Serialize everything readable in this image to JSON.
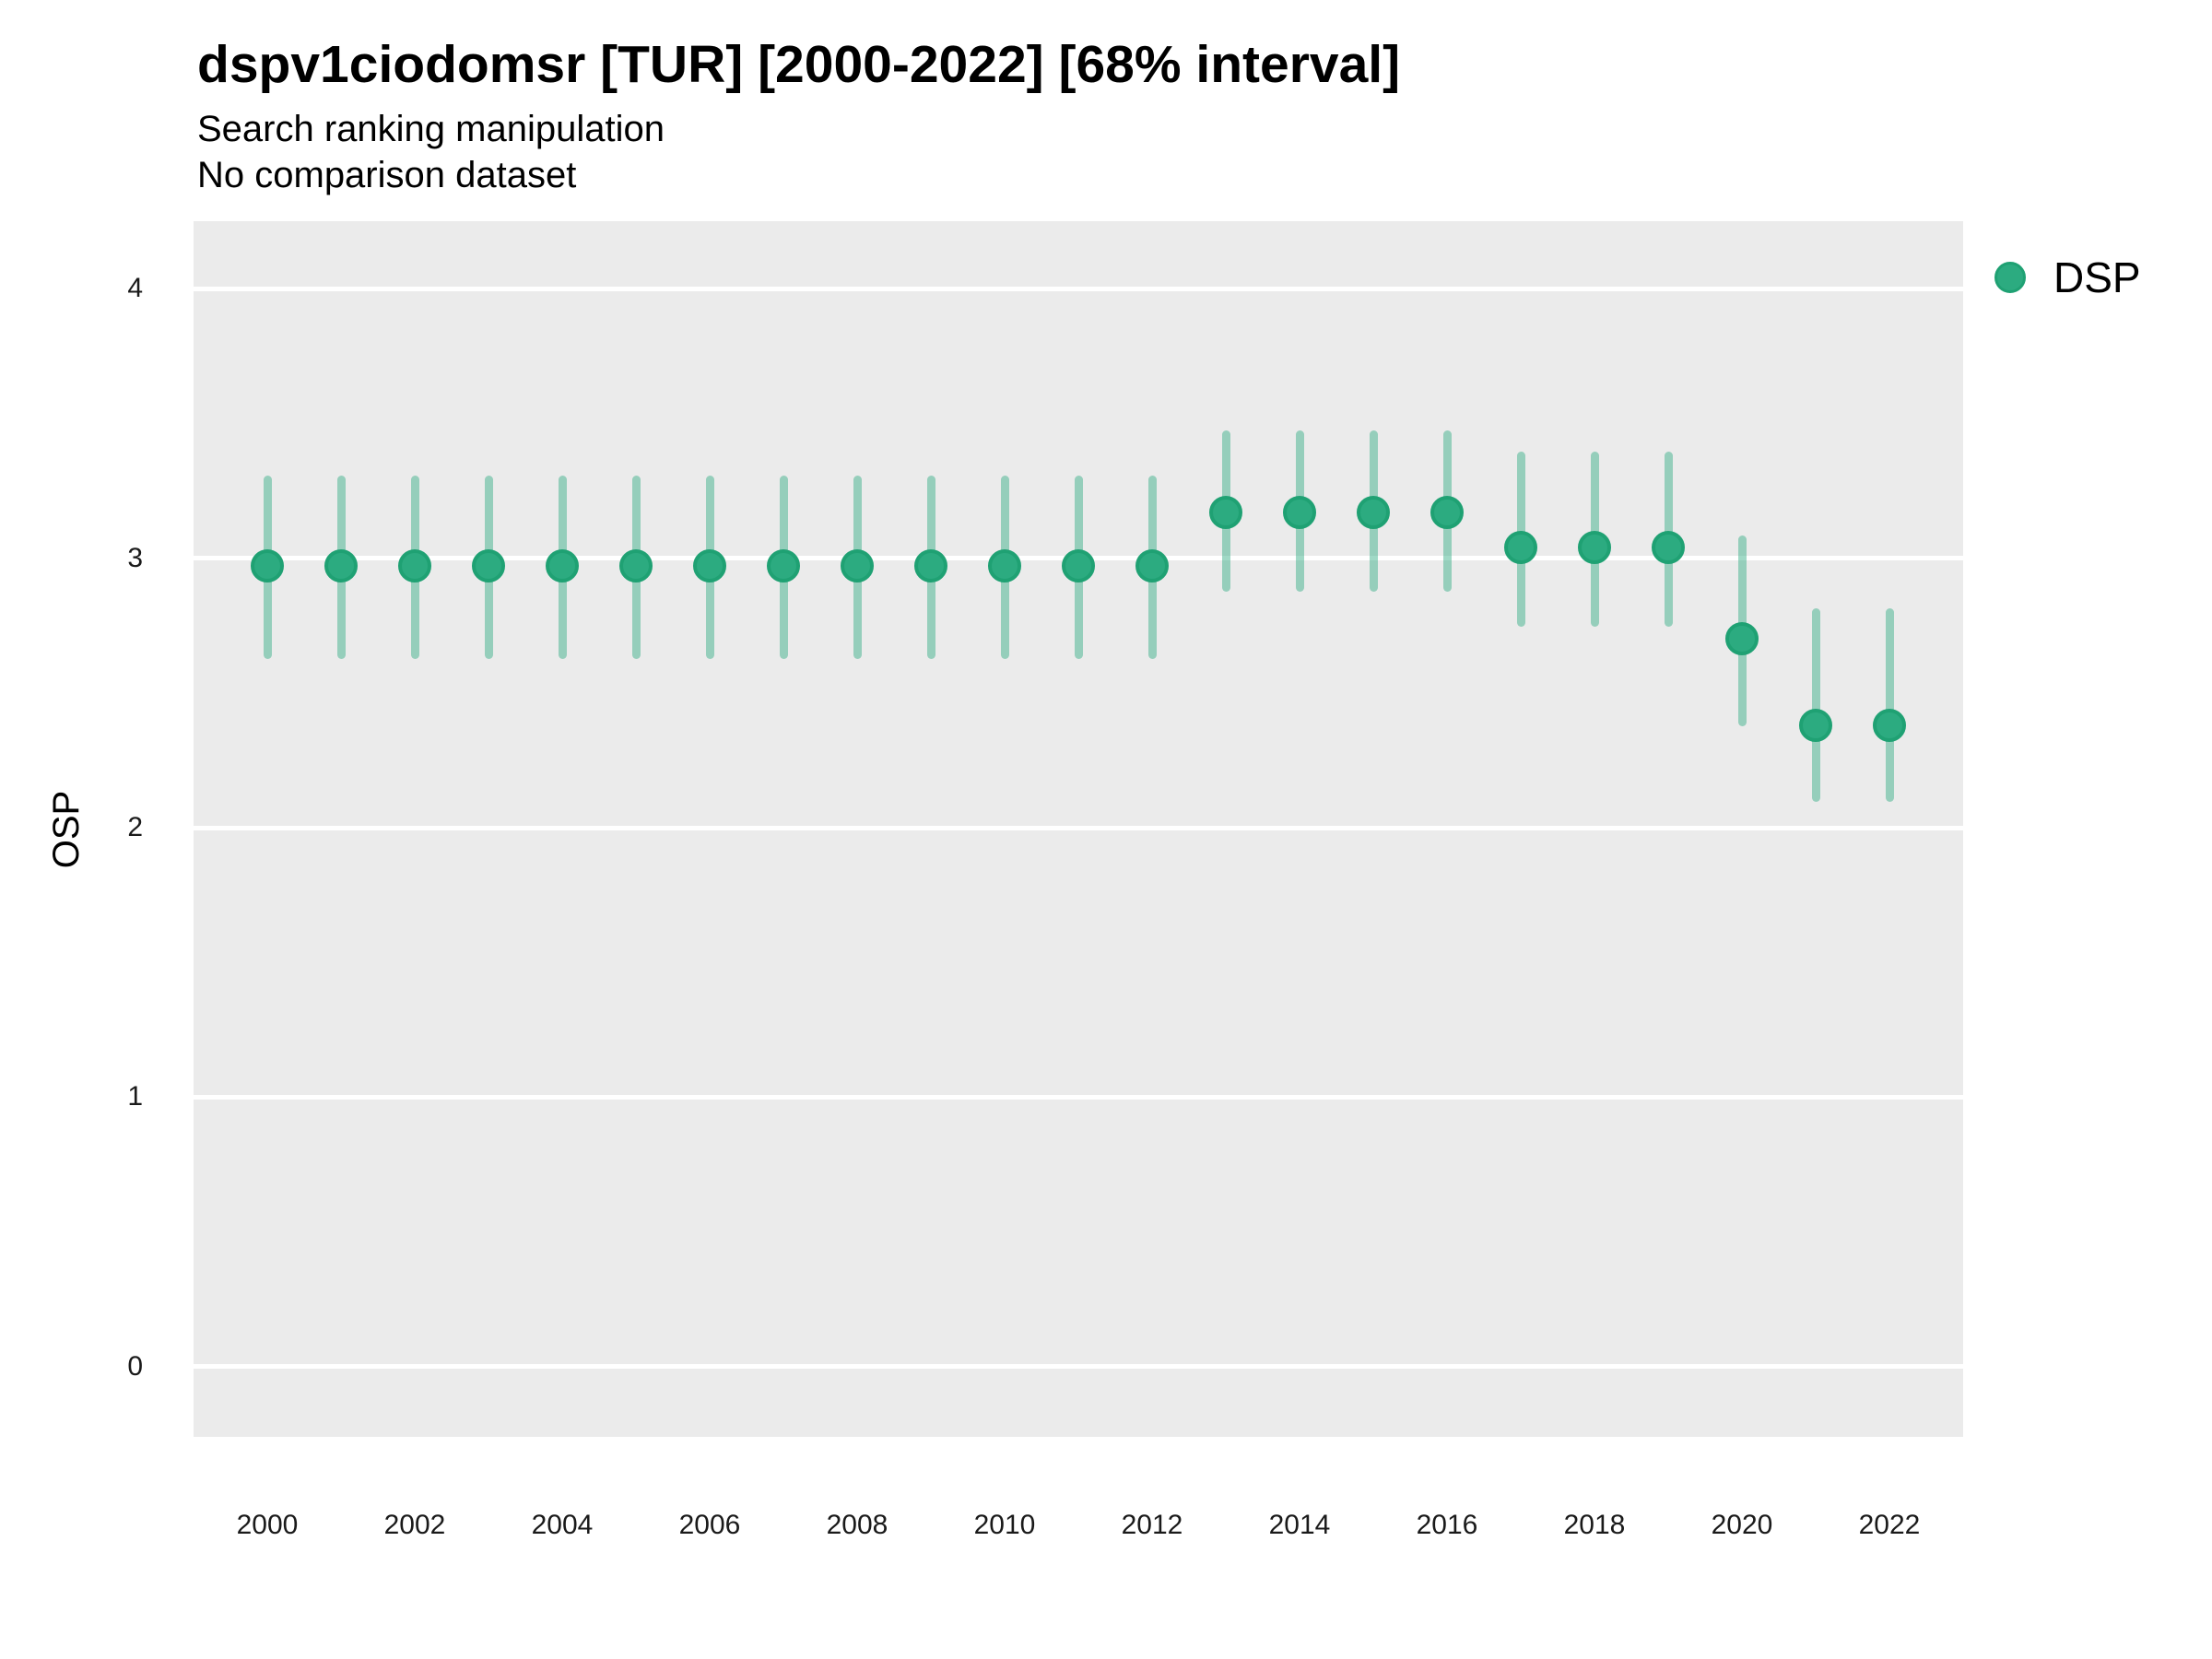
{
  "title": "dspv1ciodomsr [TUR] [2000-2022] [68% interval]",
  "subtitle1": "Search ranking manipulation",
  "subtitle2": "No comparison dataset",
  "y_axis_label": "OSP",
  "legend": {
    "label": "DSP",
    "position": "right"
  },
  "colors": {
    "point_fill": "#2CAB80",
    "point_stroke": "#1FA173",
    "interval_bar": "rgba(44,171,128,0.45)",
    "panel_background": "#EBEBEB",
    "gridline": "#FFFFFF",
    "text": "#000000"
  },
  "chart_data": {
    "type": "scatter",
    "title": "dspv1ciodomsr [TUR] [2000-2022] [68% interval]",
    "subtitle": "Search ranking manipulation / No comparison dataset",
    "xlabel": "",
    "ylabel": "OSP",
    "x": [
      2000,
      2001,
      2002,
      2003,
      2004,
      2005,
      2006,
      2007,
      2008,
      2009,
      2010,
      2011,
      2012,
      2013,
      2014,
      2015,
      2016,
      2017,
      2018,
      2019,
      2020,
      2021,
      2022
    ],
    "series": [
      {
        "name": "DSP",
        "values": [
          2.97,
          2.97,
          2.97,
          2.97,
          2.97,
          2.97,
          2.97,
          2.97,
          2.97,
          2.97,
          2.97,
          2.97,
          2.97,
          3.17,
          3.17,
          3.17,
          3.17,
          3.04,
          3.04,
          3.04,
          2.7,
          2.38,
          2.38
        ],
        "interval_low": [
          2.64,
          2.64,
          2.64,
          2.64,
          2.64,
          2.64,
          2.64,
          2.64,
          2.64,
          2.64,
          2.64,
          2.64,
          2.64,
          2.89,
          2.89,
          2.89,
          2.89,
          2.76,
          2.76,
          2.76,
          2.39,
          2.11,
          2.11
        ],
        "interval_high": [
          3.29,
          3.29,
          3.29,
          3.29,
          3.29,
          3.29,
          3.29,
          3.29,
          3.29,
          3.29,
          3.29,
          3.29,
          3.29,
          3.46,
          3.46,
          3.46,
          3.46,
          3.38,
          3.38,
          3.38,
          3.07,
          2.8,
          2.8
        ],
        "interval_label": "68% interval"
      }
    ],
    "x_ticks": [
      2000,
      2002,
      2004,
      2006,
      2008,
      2010,
      2012,
      2014,
      2016,
      2018,
      2020,
      2022
    ],
    "y_ticks": [
      0,
      1,
      2,
      3,
      4
    ],
    "xlim": [
      1999,
      2023
    ],
    "ylim": [
      -0.26,
      4.25
    ],
    "grid": "major horizontal white lines on gray panel",
    "legend_position": "right"
  }
}
